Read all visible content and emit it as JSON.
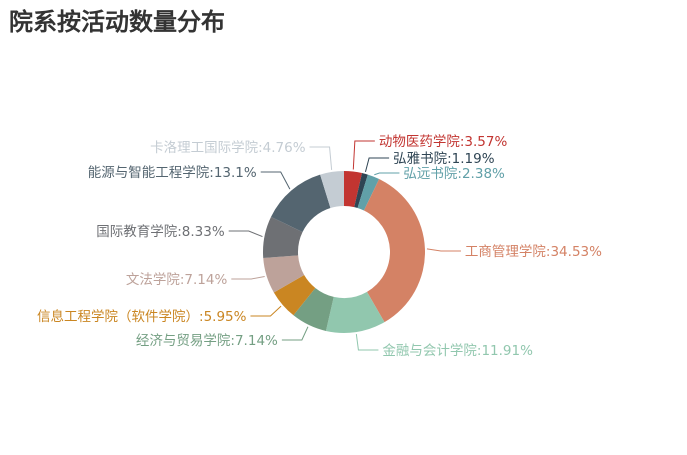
{
  "chart_data": {
    "type": "pie",
    "title": "院系按活动数量分布",
    "slices": [
      {
        "label": "动物医药学院:3.57%",
        "name": "动物医药学院",
        "value": 3.57,
        "color": "#c23531"
      },
      {
        "label": "弘雅书院:1.19%",
        "name": "弘雅书院",
        "value": 1.19,
        "color": "#2f4554"
      },
      {
        "label": "弘远书院:2.38%",
        "name": "弘远书院",
        "value": 2.38,
        "color": "#61a0a8"
      },
      {
        "label": "工商管理学院:34.53%",
        "name": "工商管理学院",
        "value": 34.53,
        "color": "#d48265"
      },
      {
        "label": "金融与会计学院:11.91%",
        "name": "金融与会计学院",
        "value": 11.91,
        "color": "#91c7ae"
      },
      {
        "label": "经济与贸易学院:7.14%",
        "name": "经济与贸易学院",
        "value": 7.14,
        "color": "#749f83"
      },
      {
        "label": "信息工程学院（软件学院）:5.95%",
        "name": "信息工程学院（软件学院）",
        "value": 5.95,
        "color": "#ca8622"
      },
      {
        "label": "文法学院:7.14%",
        "name": "文法学院",
        "value": 7.14,
        "color": "#bda29a"
      },
      {
        "label": "国际教育学院:8.33%",
        "name": "国际教育学院",
        "value": 8.33,
        "color": "#6e7074"
      },
      {
        "label": "能源与智能工程学院:13.1%",
        "name": "能源与智能工程学院",
        "value": 13.1,
        "color": "#546570"
      },
      {
        "label": "卡洛理工国际学院:4.76%",
        "name": "卡洛理工国际学院",
        "value": 4.76,
        "color": "#c4ccd3"
      }
    ]
  }
}
